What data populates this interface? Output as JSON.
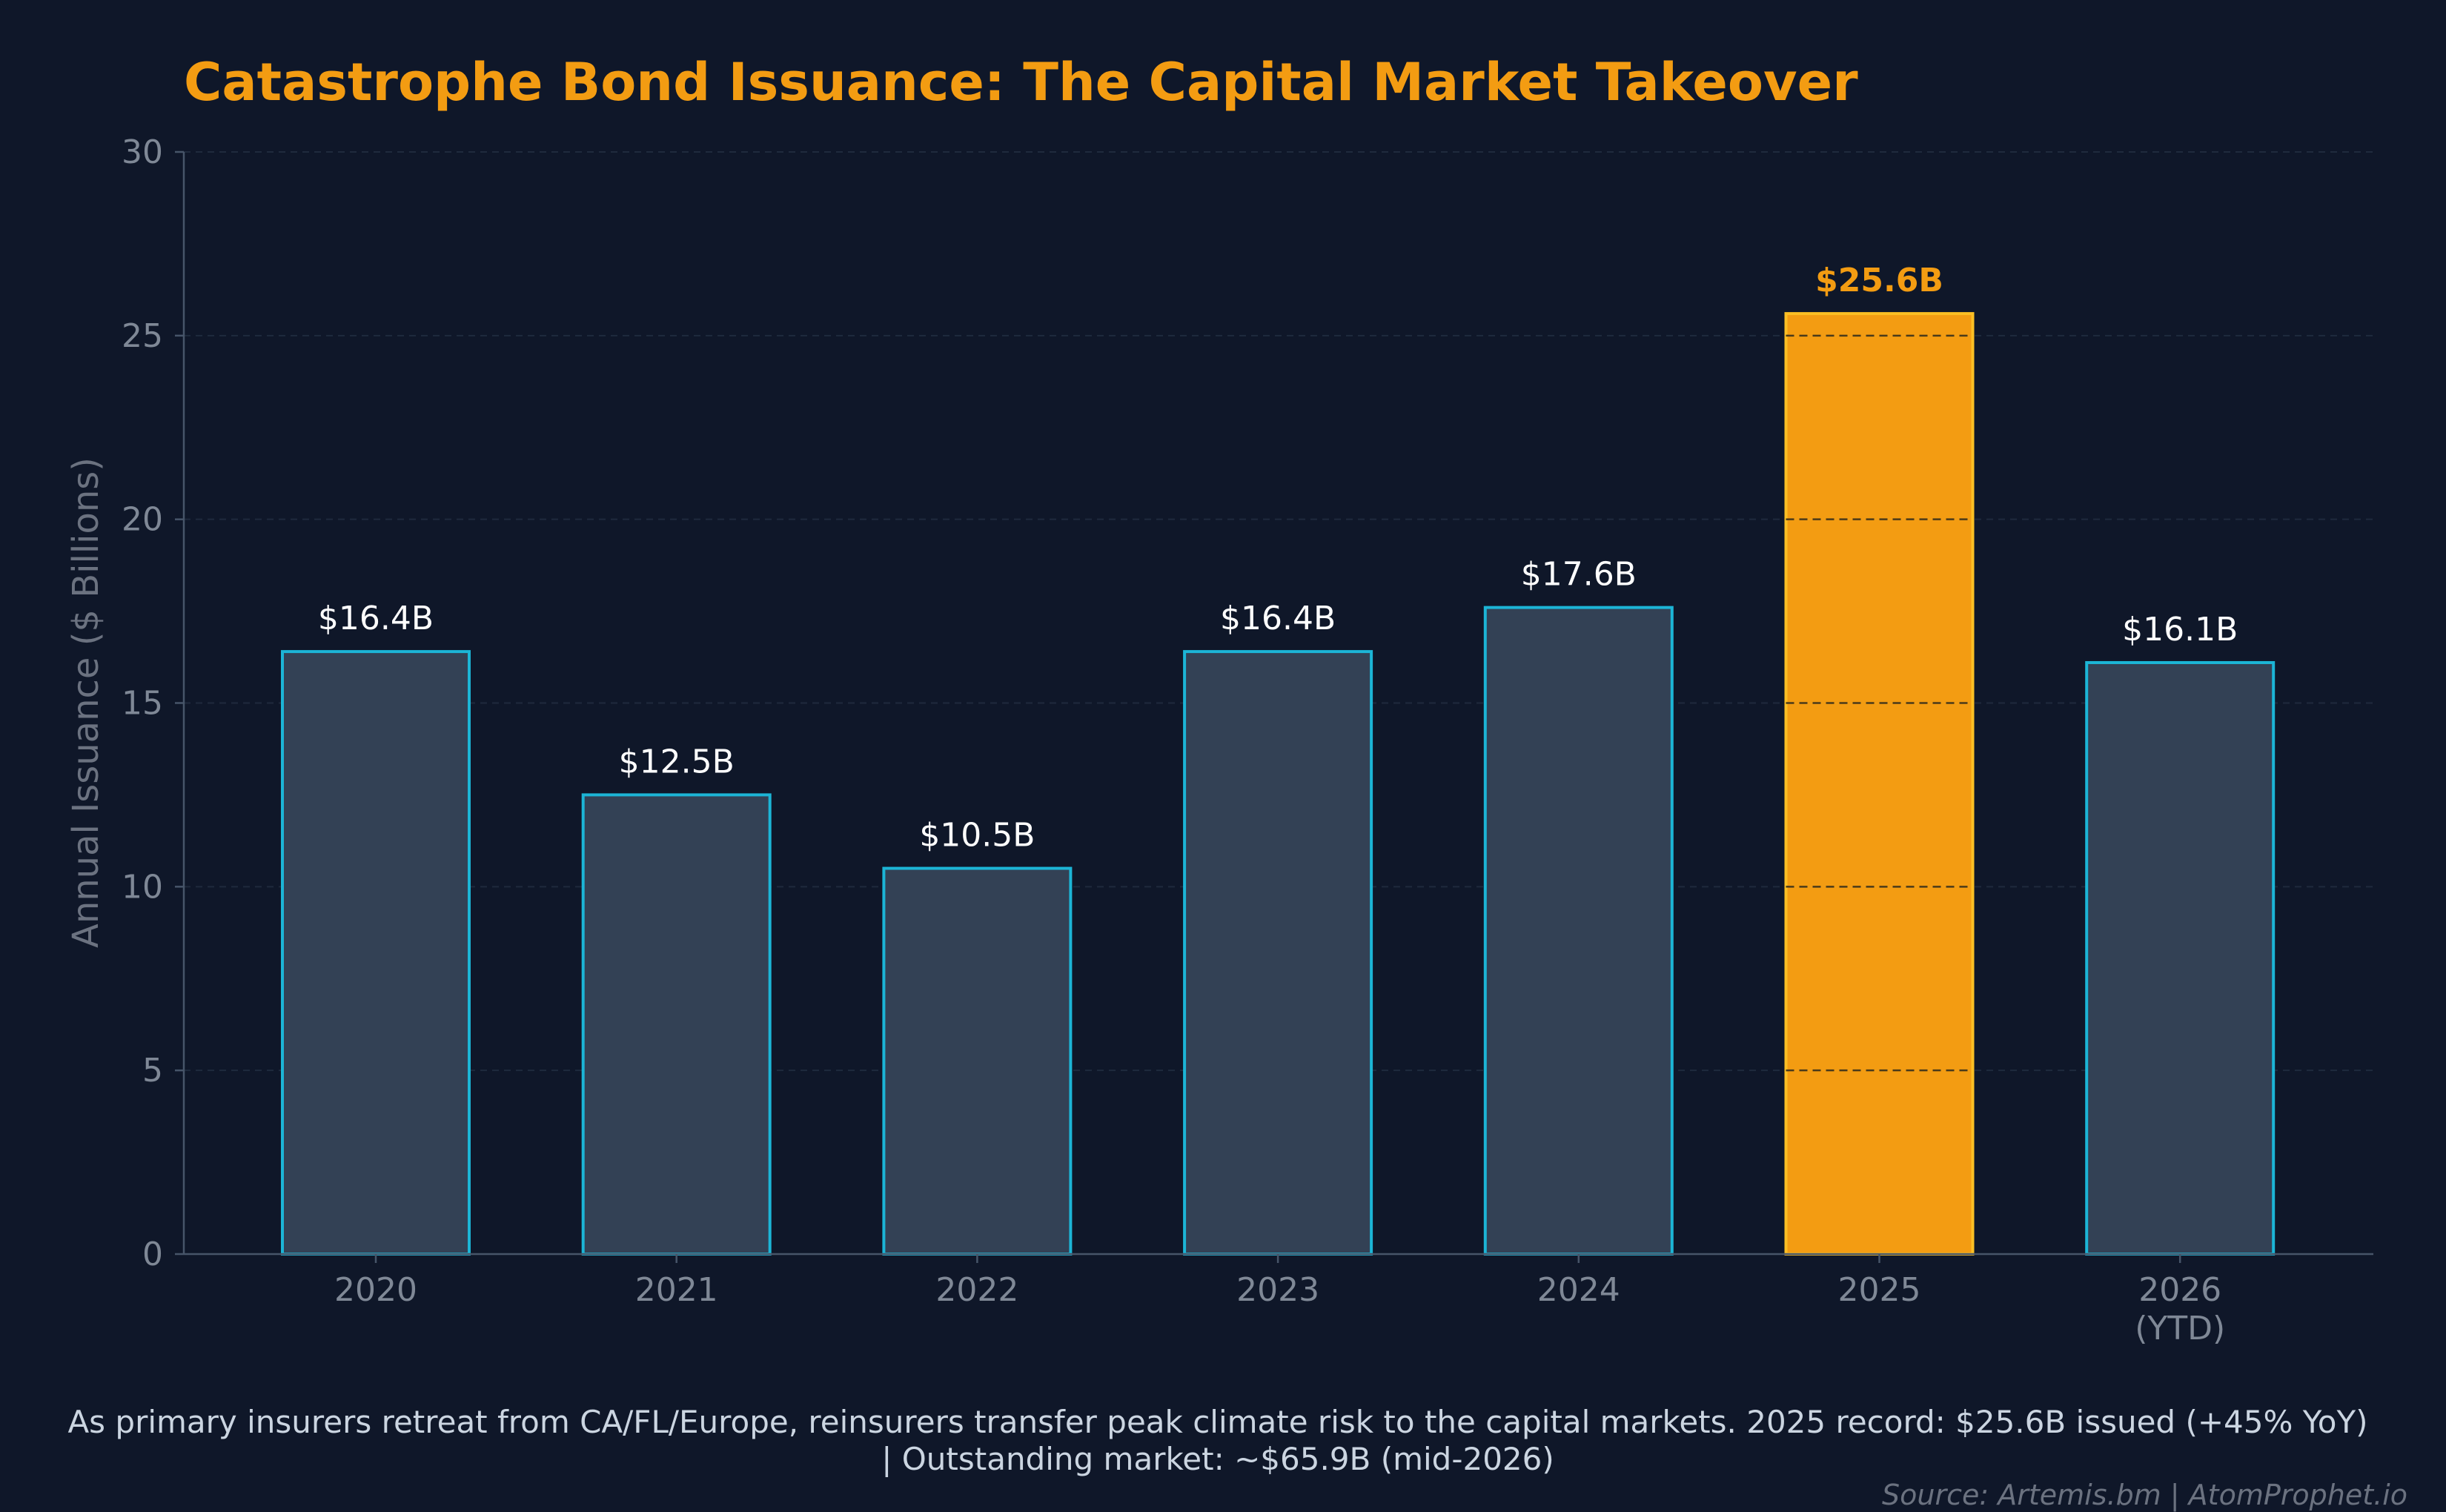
{
  "colors": {
    "background": "#0f1729",
    "title": "#f39c12",
    "bar_fill": "#334155",
    "bar_edge": "#1cb5d6",
    "highlight_fill": "#f39c12",
    "highlight_edge": "#fbbf24",
    "highlight_label": "#f39c12",
    "value_label": "#ffffff",
    "tick_label": "#7f8896",
    "axis_label": "#6b7280",
    "axis_line": "#475569",
    "grid": "#1f2a3d",
    "caption": "#cbd5e1",
    "source": "#6b7280"
  },
  "chart_data": {
    "type": "bar",
    "title": "Catastrophe Bond Issuance: The Capital Market Takeover",
    "ylabel": "Annual Issuance ($ Billions)",
    "xlabel": "",
    "ylim": [
      0,
      30
    ],
    "yticks": [
      0,
      5,
      10,
      15,
      20,
      25,
      30
    ],
    "grid": true,
    "grid_axis": "y",
    "categories": [
      [
        "2020"
      ],
      [
        "2021"
      ],
      [
        "2022"
      ],
      [
        "2023"
      ],
      [
        "2024"
      ],
      [
        "2025"
      ],
      [
        "2026",
        "(YTD)"
      ]
    ],
    "values": [
      16.4,
      12.5,
      10.5,
      16.4,
      17.6,
      25.6,
      16.1
    ],
    "labels": [
      "$16.4B",
      "$12.5B",
      "$10.5B",
      "$16.4B",
      "$17.6B",
      "$25.6B",
      "$16.1B"
    ],
    "highlight_index": 5
  },
  "caption": {
    "line1": "As primary insurers retreat from CA/FL/Europe, reinsurers transfer peak climate risk to the capital markets.    2025 record: $25.6B issued (+45% YoY)",
    "line2": "|  Outstanding market: ~$65.9B (mid-2026)"
  },
  "source": "Source: Artemis.bm | AtomProphet.io"
}
